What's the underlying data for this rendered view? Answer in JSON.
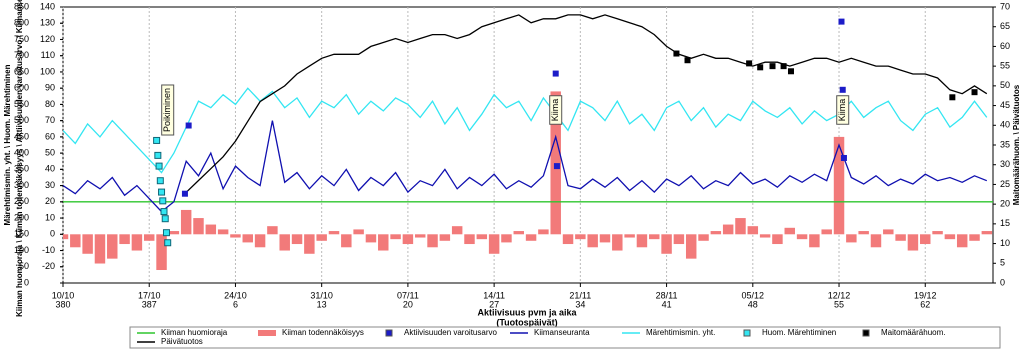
{
  "chart_data": {
    "type": "combo",
    "y_title": "Märehtimismin. yht. \\ Huom. Märehtiminen",
    "y3_title": "Kiiman huomioraja \\ Kiiman todennäköisyys \\ Aktiivisuuden varoitusarvo \\ Kiimanseuranta",
    "y2_title": "Maitomäärähuom. \\ Päivätuotos",
    "x_title": "Aktiivisuus pvm ja aika",
    "x_subtitle": "(Tuotospäivät)",
    "xlim": [
      0,
      75.5
    ],
    "xticks": [
      {
        "value": 0,
        "label": "10/10"
      },
      {
        "value": 7,
        "label": "17/10"
      },
      {
        "value": 14,
        "label": "24/10"
      },
      {
        "value": 21,
        "label": "31/10"
      },
      {
        "value": 28,
        "label": "07/11"
      },
      {
        "value": 35,
        "label": "14/11"
      },
      {
        "value": 42,
        "label": "21/11"
      },
      {
        "value": 49,
        "label": "28/11"
      },
      {
        "value": 56,
        "label": "05/12"
      },
      {
        "value": 63,
        "label": "12/12"
      },
      {
        "value": 70,
        "label": "19/12"
      }
    ],
    "xticks2": [
      {
        "value": 0,
        "label": "380"
      },
      {
        "value": 7,
        "label": "387"
      },
      {
        "value": 14,
        "label": "6"
      },
      {
        "value": 21,
        "label": "13"
      },
      {
        "value": 28,
        "label": "20"
      },
      {
        "value": 35,
        "label": "27"
      },
      {
        "value": 42,
        "label": "34"
      },
      {
        "value": 49,
        "label": "41"
      },
      {
        "value": 56,
        "label": "48"
      },
      {
        "value": 63,
        "label": "55"
      },
      {
        "value": 70,
        "label": "62"
      }
    ],
    "ylim": [
      0,
      850
    ],
    "yticks": [
      0,
      50,
      100,
      150,
      200,
      250,
      300,
      350,
      400,
      450,
      500,
      550,
      600,
      650,
      700,
      750,
      800,
      850
    ],
    "y3lim": [
      -30,
      140
    ],
    "y3ticks": [
      -20,
      -10,
      0,
      10,
      20,
      30,
      40,
      50,
      60,
      70,
      80,
      90,
      100,
      110,
      120,
      130,
      140
    ],
    "y2lim": [
      0,
      70
    ],
    "y2ticks": [
      0,
      5,
      10,
      15,
      20,
      25,
      30,
      35,
      40,
      45,
      50,
      55,
      60,
      65,
      70
    ],
    "x": [
      0,
      1,
      2,
      3,
      4,
      5,
      6,
      7,
      8,
      9,
      10,
      11,
      12,
      13,
      14,
      15,
      16,
      17,
      18,
      19,
      20,
      21,
      22,
      23,
      24,
      25,
      26,
      27,
      28,
      29,
      30,
      31,
      32,
      33,
      34,
      35,
      36,
      37,
      38,
      39,
      40,
      41,
      42,
      43,
      44,
      45,
      46,
      47,
      48,
      49,
      50,
      51,
      52,
      53,
      54,
      55,
      56,
      57,
      58,
      59,
      60,
      61,
      62,
      63,
      64,
      65,
      66,
      67,
      68,
      69,
      70,
      71,
      72,
      73,
      74,
      75
    ],
    "series": [
      {
        "name": "Kiiman huomioraja",
        "color": "#2ec62e",
        "type": "line",
        "axis": "y3",
        "x": [
          0,
          75.5
        ],
        "values": [
          20,
          20
        ]
      },
      {
        "name": "Kiiman todennäköisyys",
        "color": "#f27a7a",
        "type": "bar",
        "axis": "y3",
        "values": [
          -3,
          -8,
          -12,
          -18,
          -15,
          -6,
          -10,
          -4,
          -22,
          2,
          15,
          10,
          6,
          3,
          -2,
          -5,
          -8,
          5,
          -10,
          -6,
          -12,
          -4,
          2,
          -8,
          3,
          -5,
          -10,
          -3,
          -6,
          -2,
          -8,
          -4,
          5,
          -6,
          -3,
          -12,
          -5,
          2,
          -4,
          3,
          88,
          -6,
          -3,
          -8,
          -5,
          -10,
          -2,
          -8,
          -3,
          -12,
          -6,
          -15,
          -4,
          2,
          6,
          10,
          5,
          -2,
          -6,
          4,
          -3,
          -8,
          3,
          60,
          -5,
          2,
          -8,
          3,
          -4,
          -10,
          -6,
          2,
          -3,
          -8,
          -4,
          2
        ]
      },
      {
        "name": "Aktiivisuuden varoitusarvo",
        "color": "#1c1cc8",
        "type": "marker",
        "axis": "y3",
        "x": [
          9.9,
          10.2,
          40,
          40.1,
          63.2,
          63.3,
          63.4
        ],
        "values": [
          25,
          67,
          99,
          42,
          131,
          89,
          47
        ]
      },
      {
        "name": "Kiimanseuranta",
        "color": "#1010b0",
        "type": "line",
        "axis": "y3",
        "values": [
          30,
          25,
          33,
          28,
          35,
          24,
          30,
          22,
          14,
          20,
          45,
          36,
          50,
          28,
          42,
          35,
          30,
          70,
          32,
          38,
          28,
          36,
          30,
          40,
          27,
          35,
          30,
          38,
          26,
          33,
          30,
          40,
          28,
          35,
          30,
          37,
          28,
          33,
          29,
          36,
          60,
          30,
          28,
          34,
          29,
          35,
          27,
          33,
          26,
          34,
          30,
          36,
          28,
          33,
          30,
          38,
          31,
          34,
          29,
          36,
          32,
          37,
          33,
          55,
          35,
          31,
          36,
          30,
          34,
          31,
          37,
          33,
          35,
          32,
          36,
          33
        ]
      },
      {
        "name": "Märehtimismin. yht.",
        "color": "#33e6f2",
        "type": "line",
        "axis": "y",
        "values": [
          470,
          430,
          490,
          450,
          500,
          460,
          420,
          380,
          340,
          400,
          480,
          560,
          540,
          580,
          550,
          600,
          560,
          590,
          540,
          570,
          510,
          560,
          540,
          580,
          520,
          560,
          530,
          570,
          550,
          510,
          560,
          490,
          540,
          470,
          520,
          580,
          540,
          560,
          500,
          570,
          520,
          470,
          560,
          540,
          500,
          560,
          490,
          520,
          470,
          540,
          560,
          500,
          540,
          480,
          520,
          500,
          560,
          530,
          510,
          540,
          490,
          530,
          500,
          520,
          560,
          510,
          540,
          560,
          500,
          470,
          520,
          540,
          480,
          510,
          560,
          510
        ]
      },
      {
        "name": "Huom. Märehtiminen",
        "color": "#33e6f2",
        "type": "marker",
        "axis": "y",
        "x": [
          7.6,
          7.7,
          7.8,
          7.9,
          8.0,
          8.1,
          8.2,
          8.3,
          8.4,
          8.5
        ],
        "values": [
          439,
          393,
          360,
          315,
          280,
          253,
          220,
          198,
          155,
          124
        ]
      },
      {
        "name": "Maitomäärähuom.",
        "color": "#000000",
        "type": "marker",
        "axis": "y2",
        "x": [
          49.8,
          50.7,
          55.7,
          56.6,
          57.6,
          58.5,
          59.1,
          72.2,
          74
        ],
        "values": [
          58.2,
          56.5,
          55.7,
          54.7,
          55,
          55,
          53.7,
          47.1,
          48.4
        ]
      },
      {
        "name": "Päivätuotos",
        "color": "#000000",
        "type": "line",
        "axis": "y2",
        "values": [
          null,
          null,
          null,
          null,
          null,
          null,
          null,
          null,
          null,
          null,
          23,
          26,
          29,
          32,
          36,
          41,
          46,
          48,
          50,
          53,
          55,
          57,
          58,
          58,
          58,
          60,
          61,
          62,
          61,
          62,
          63,
          63,
          62,
          63,
          65,
          66,
          67,
          68,
          66,
          67,
          67,
          68,
          68,
          67,
          68,
          67,
          66,
          65,
          63,
          60,
          58,
          57,
          58,
          57,
          57,
          56,
          55,
          56,
          56,
          55,
          56,
          57,
          57,
          56,
          57,
          56,
          55,
          55,
          54,
          53,
          53,
          52,
          49,
          48,
          50,
          48
        ]
      }
    ],
    "annotations": [
      {
        "text": "Poikiminen",
        "x": 8.5
      },
      {
        "text": "Kiima",
        "x": 40
      },
      {
        "text": "Kiima",
        "x": 63.3
      }
    ]
  }
}
